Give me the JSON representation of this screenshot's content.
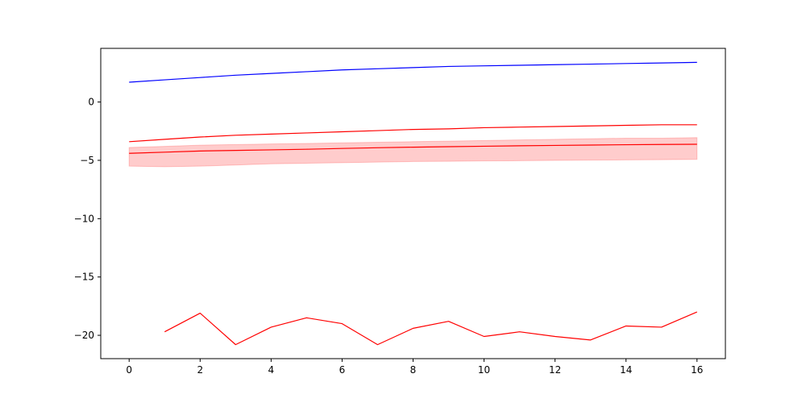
{
  "chart_data": {
    "type": "line",
    "title": "",
    "xlabel": "",
    "ylabel": "",
    "xlim": [
      -0.8,
      16.8
    ],
    "ylim": [
      -22.0,
      4.6
    ],
    "grid": false,
    "xticks": [
      0,
      2,
      4,
      6,
      8,
      10,
      12,
      14,
      16
    ],
    "yticks": [
      0,
      -5,
      -10,
      -15,
      -20
    ],
    "xtick_labels": [
      "0",
      "2",
      "4",
      "6",
      "8",
      "10",
      "12",
      "14",
      "16"
    ],
    "ytick_labels": [
      "0",
      "−5",
      "−10",
      "−15",
      "−20"
    ],
    "series": [
      {
        "color": "#0000ff",
        "style": "line",
        "x": [
          0,
          1,
          2,
          3,
          4,
          5,
          6,
          7,
          8,
          9,
          10,
          11,
          12,
          13,
          14,
          15,
          16
        ],
        "values": [
          1.7,
          1.9,
          2.1,
          2.3,
          2.45,
          2.6,
          2.75,
          2.85,
          2.95,
          3.05,
          3.1,
          3.15,
          3.2,
          3.25,
          3.3,
          3.35,
          3.4
        ]
      },
      {
        "color": "#ff0000",
        "style": "line",
        "x": [
          0,
          1,
          2,
          3,
          4,
          5,
          6,
          7,
          8,
          9,
          10,
          11,
          12,
          13,
          14,
          15,
          16
        ],
        "values": [
          -3.4,
          -3.2,
          -3.0,
          -2.85,
          -2.75,
          -2.65,
          -2.55,
          -2.45,
          -2.35,
          -2.3,
          -2.2,
          -2.15,
          -2.1,
          -2.05,
          -2.0,
          -1.95,
          -1.95
        ]
      },
      {
        "color": "#ff0000",
        "style": "line",
        "x": [
          0,
          1,
          2,
          3,
          4,
          5,
          6,
          7,
          8,
          9,
          10,
          11,
          12,
          13,
          14,
          15,
          16
        ],
        "values": [
          -4.4,
          -4.3,
          -4.2,
          -4.15,
          -4.1,
          -4.05,
          -3.98,
          -3.92,
          -3.87,
          -3.83,
          -3.79,
          -3.75,
          -3.72,
          -3.69,
          -3.66,
          -3.64,
          -3.62
        ]
      },
      {
        "color": "#ff0000",
        "style": "line",
        "x": [
          1,
          2,
          3,
          4,
          5,
          6,
          7,
          8,
          9,
          10,
          11,
          12,
          13,
          14,
          15,
          16
        ],
        "values": [
          -19.7,
          -18.1,
          -20.8,
          -19.3,
          -18.5,
          -19.0,
          -20.8,
          -19.4,
          -18.8,
          -20.1,
          -19.7,
          -20.1,
          -20.4,
          -19.2,
          -19.3,
          -18.0
        ]
      }
    ],
    "bands": [
      {
        "color": "#ff0000",
        "opacity": 0.2,
        "x": [
          0,
          1,
          2,
          3,
          4,
          5,
          6,
          7,
          8,
          9,
          10,
          11,
          12,
          13,
          14,
          15,
          16
        ],
        "upper": [
          -3.9,
          -3.8,
          -3.7,
          -3.65,
          -3.6,
          -3.55,
          -3.5,
          -3.45,
          -3.4,
          -3.35,
          -3.3,
          -3.25,
          -3.2,
          -3.15,
          -3.1,
          -3.1,
          -3.05
        ],
        "lower": [
          -5.5,
          -5.55,
          -5.5,
          -5.4,
          -5.3,
          -5.25,
          -5.2,
          -5.15,
          -5.1,
          -5.08,
          -5.05,
          -5.03,
          -5.0,
          -4.98,
          -4.96,
          -4.94,
          -4.92
        ]
      }
    ]
  }
}
